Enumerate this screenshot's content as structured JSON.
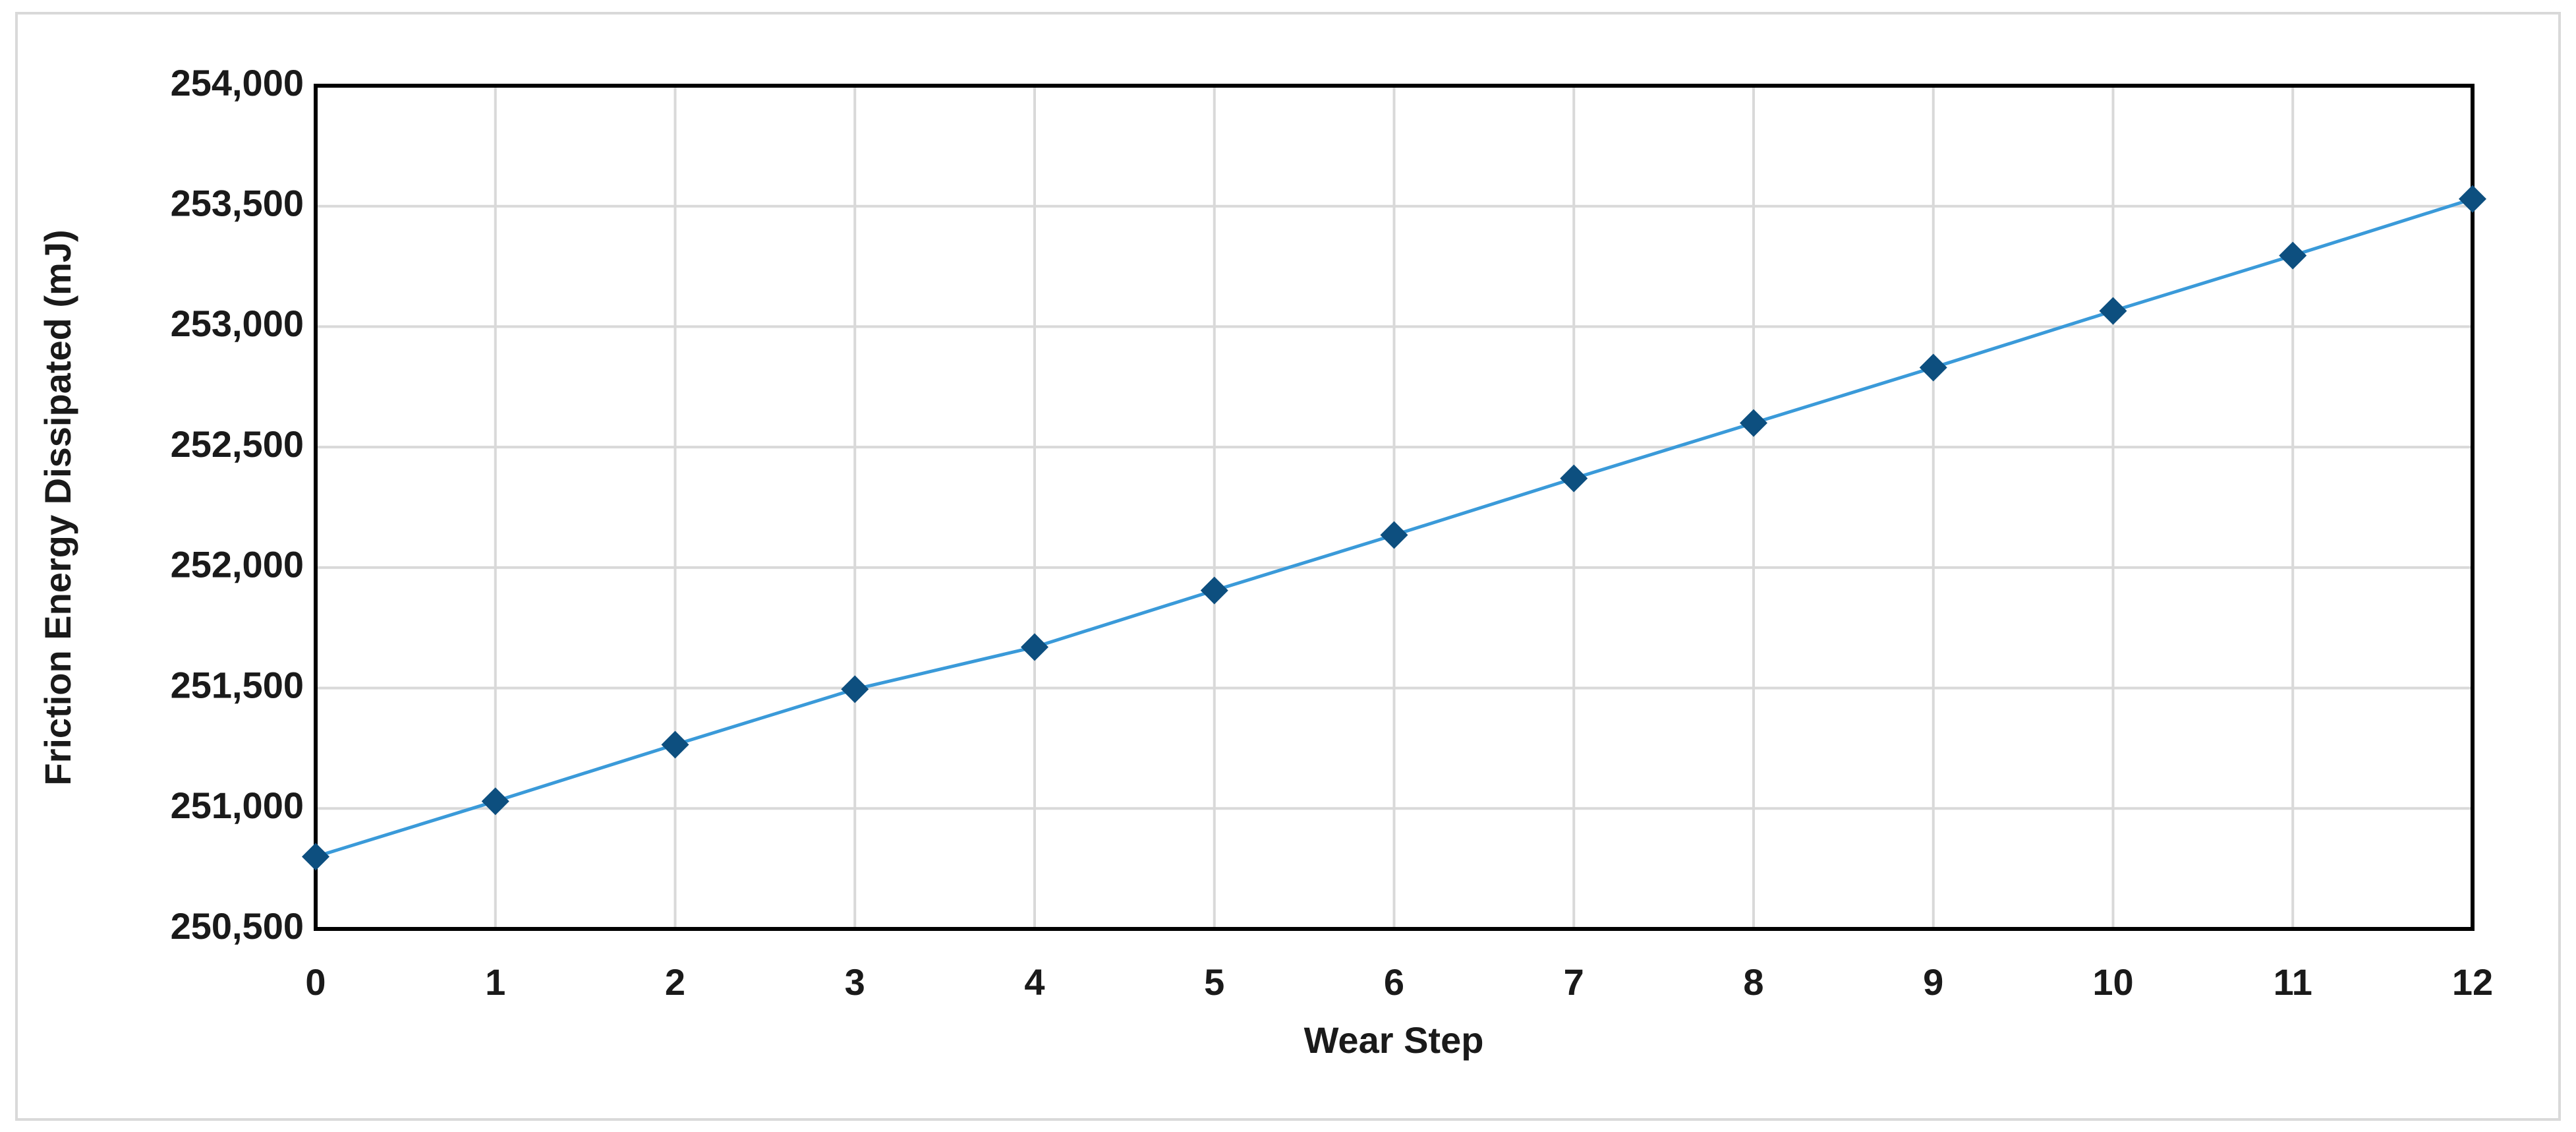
{
  "chart_data": {
    "type": "line",
    "x_label": "Wear Step",
    "y_label": "Friction Energy Dissipated (mJ)",
    "x": [
      0,
      1,
      2,
      3,
      4,
      5,
      6,
      7,
      8,
      9,
      10,
      11,
      12
    ],
    "series": [
      {
        "name": "Friction Energy Dissipated",
        "line_color": "#3a9ad9",
        "marker_color": "#0d4f7f",
        "values": [
          250800,
          251030,
          251265,
          251495,
          251670,
          251905,
          252135,
          252370,
          252600,
          252830,
          253065,
          253295,
          253530
        ]
      }
    ],
    "xlim": [
      0,
      12
    ],
    "xticks": [
      0,
      1,
      2,
      3,
      4,
      5,
      6,
      7,
      8,
      9,
      10,
      11,
      12
    ],
    "ylim": [
      250500,
      254000
    ],
    "yticks": [
      {
        "value": 250500,
        "label": "250,500"
      },
      {
        "value": 251000,
        "label": "251,000"
      },
      {
        "value": 251500,
        "label": "251,500"
      },
      {
        "value": 252000,
        "label": "252,000"
      },
      {
        "value": 252500,
        "label": "252,500"
      },
      {
        "value": 253000,
        "label": "253,000"
      },
      {
        "value": 253500,
        "label": "253,500"
      },
      {
        "value": 254000,
        "label": "254,000"
      }
    ],
    "grid": true
  }
}
